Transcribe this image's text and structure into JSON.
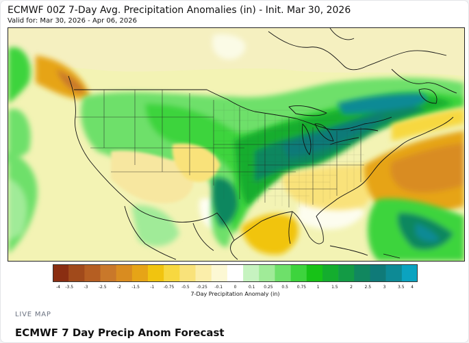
{
  "map": {
    "title": "ECMWF 00Z 7-Day Avg. Precipitation Anomalies (in) - Init. Mar 30, 2026",
    "valid": "Valid for: Mar 30, 2026 - Apr 06, 2026",
    "region": "Contiguous United States"
  },
  "legend": {
    "title": "7-Day Precipitation Anomaly (in)",
    "ticks": [
      "-4",
      "-3.5",
      "-3",
      "-2.5",
      "-2",
      "-1.5",
      "-1",
      "-0.75",
      "-0.5",
      "-0.25",
      "-0.1",
      "0",
      "0.1",
      "0.25",
      "0.5",
      "0.75",
      "1",
      "1.5",
      "2",
      "2.5",
      "3",
      "3.5",
      "4"
    ],
    "colors": [
      "#8a2e12",
      "#a14a1b",
      "#b55e22",
      "#c9782a",
      "#d98c20",
      "#e6a417",
      "#f1c40f",
      "#f7d840",
      "#f9e27a",
      "#fbeeaa",
      "#fcf8d4",
      "#ffffff",
      "#c6f3c0",
      "#a0eb98",
      "#6ee06a",
      "#3dd43d",
      "#17c217",
      "#14ad2e",
      "#139b45",
      "#11875f",
      "#0f7a78",
      "#0d8a95",
      "#0ba3c0"
    ]
  },
  "footer": {
    "kicker": "LIVE MAP",
    "headline": "ECMWF 7 Day Precip Anom Forecast"
  }
}
